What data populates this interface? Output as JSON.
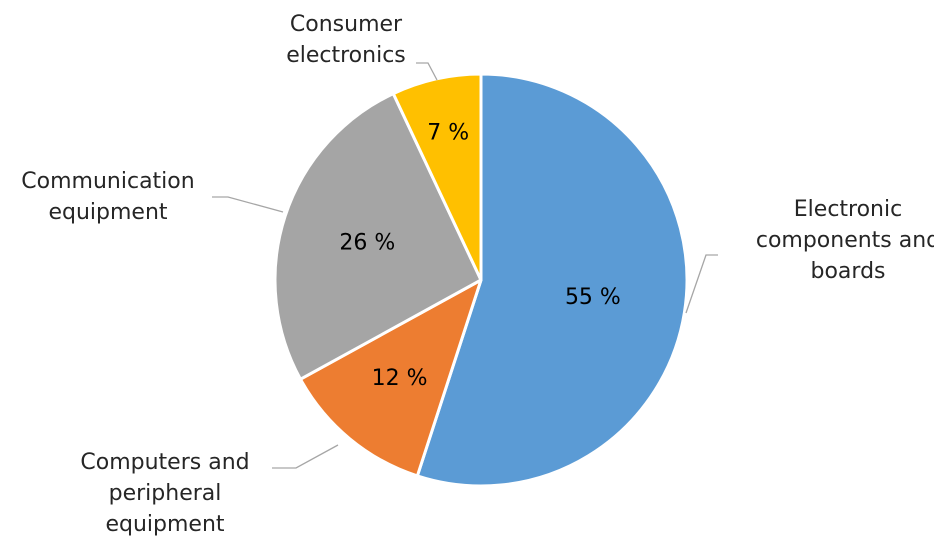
{
  "chart_data": {
    "type": "pie",
    "title": "",
    "start_angle_deg": 0,
    "direction": "clockwise",
    "legend": "none",
    "slices": [
      {
        "category": "Electronic components and boards",
        "value": 55,
        "value_label": "55 %",
        "label_lines": [
          "Electronic",
          "components and",
          "boards"
        ],
        "color": "#5b9bd5"
      },
      {
        "category": "Computers and peripheral equipment",
        "value": 12,
        "value_label": "12 %",
        "label_lines": [
          "Computers and",
          "peripheral",
          "equipment"
        ],
        "color": "#ed7d31"
      },
      {
        "category": "Communication equipment",
        "value": 26,
        "value_label": "26 %",
        "label_lines": [
          "Communication",
          "equipment"
        ],
        "color": "#a5a5a5"
      },
      {
        "category": "Consumer electronics",
        "value": 7,
        "value_label": "7 %",
        "label_lines": [
          "Consumer",
          "electronics"
        ],
        "color": "#ffc000"
      }
    ]
  }
}
